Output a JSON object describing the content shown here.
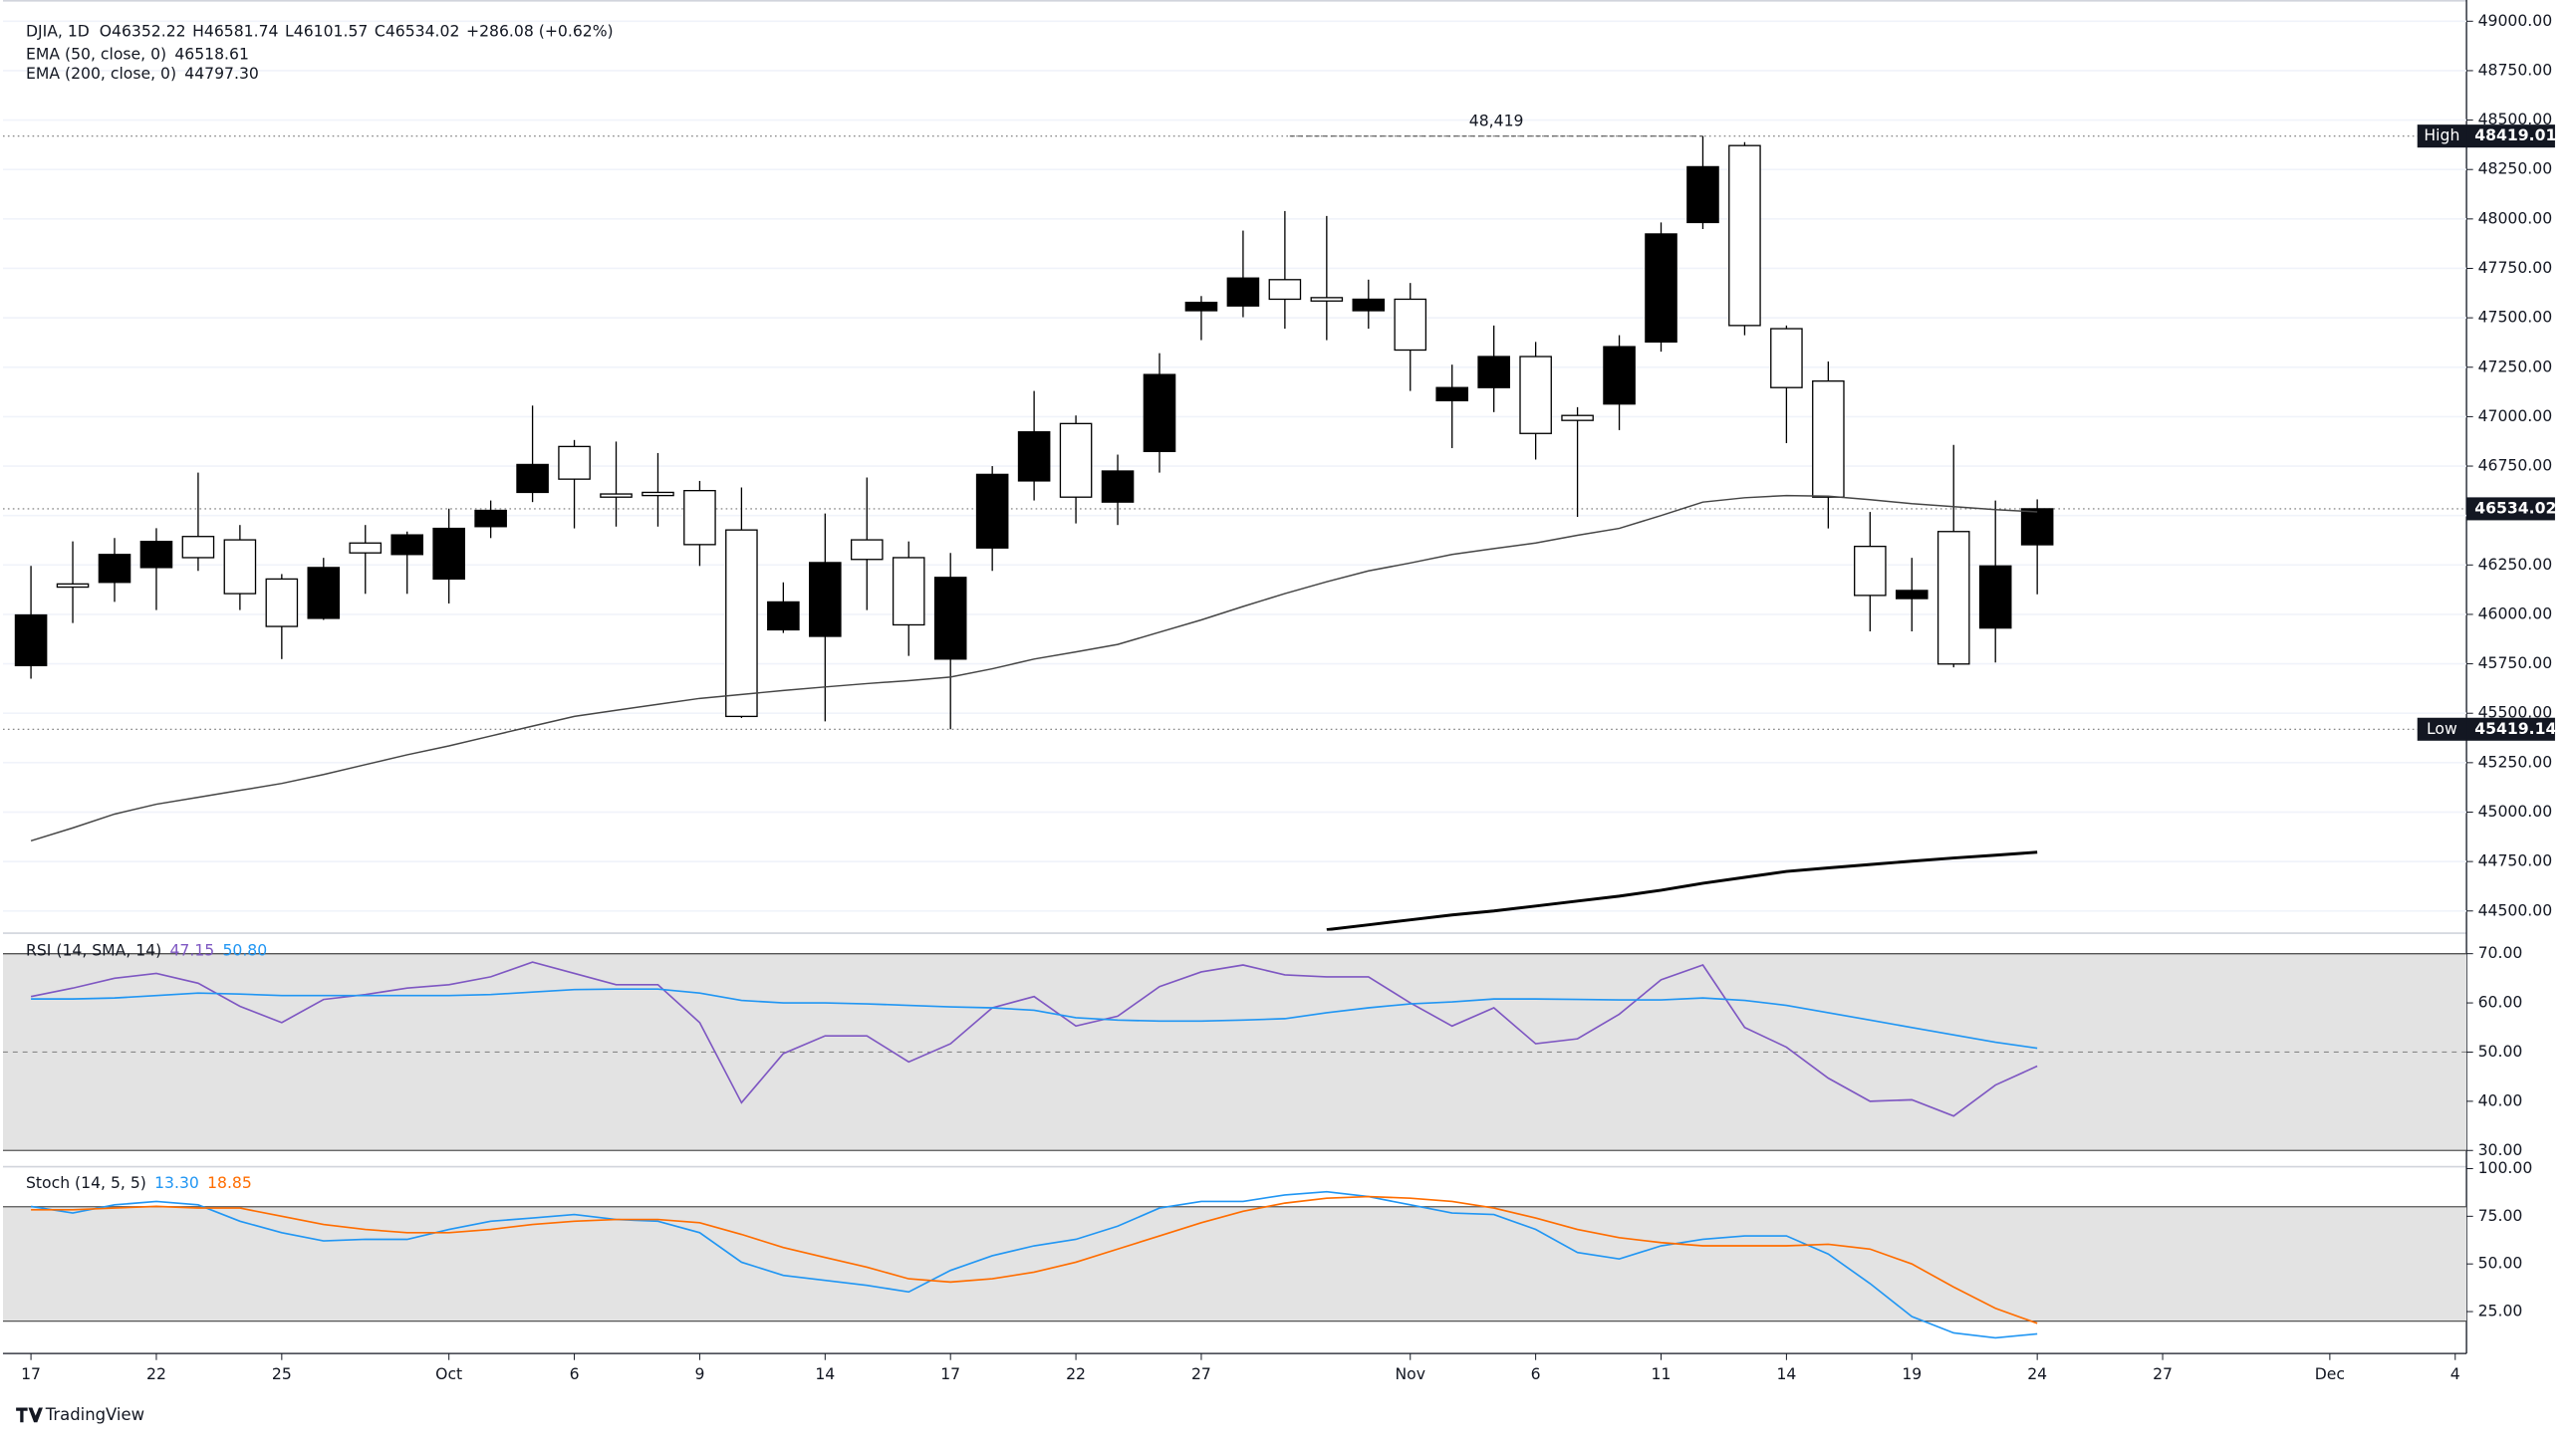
{
  "chart_data": [
    {
      "type": "candlestick",
      "title": "DJIA, 1D",
      "ohlc_prefixes": [
        "O",
        "H",
        "L",
        "C"
      ],
      "change": "+286.08 (+0.62%)",
      "x": [
        0,
        1,
        2,
        3,
        4,
        5,
        6,
        7,
        8,
        9,
        10,
        11,
        12,
        13,
        14,
        15,
        16,
        17,
        18,
        19,
        20,
        21,
        22,
        23,
        24,
        25,
        26,
        27,
        28,
        29,
        30,
        31,
        32,
        33,
        34,
        35,
        36,
        37,
        38,
        39,
        40,
        41,
        42,
        43,
        44,
        45,
        46,
        47,
        48
      ],
      "open": [
        45741,
        46154,
        46162,
        46237,
        46394,
        46377,
        46179,
        45980,
        46361,
        46303,
        46179,
        46444,
        46617,
        46849,
        46609,
        46617,
        46626,
        46427,
        45922,
        45889,
        46377,
        46287,
        45774,
        46336,
        46675,
        46965,
        46568,
        46824,
        47536,
        47560,
        47693,
        47602,
        47536,
        47594,
        47081,
        47147,
        47304,
        47006,
        47064,
        47378,
        47982,
        48371,
        47445,
        47180,
        46344,
        46080,
        46419,
        45931,
        46352.22
      ],
      "high": [
        46245,
        46369,
        46386,
        46436,
        46717,
        46452,
        46204,
        46286,
        46452,
        46419,
        46535,
        46576,
        47056,
        46882,
        46874,
        46816,
        46675,
        46642,
        46162,
        46510,
        46692,
        46369,
        46311,
        46750,
        47130,
        47006,
        46808,
        47321,
        47610,
        47941,
        48040,
        48015,
        47693,
        47676,
        47263,
        47461,
        47378,
        47048,
        47412,
        47982,
        48419.01,
        48388,
        47461,
        47279,
        46518,
        46286,
        46857,
        46576,
        46581.74
      ],
      "low": [
        45675,
        45956,
        46063,
        46022,
        46220,
        46022,
        45774,
        45972,
        46104,
        46104,
        46055,
        46386,
        46568,
        46435,
        46444,
        46444,
        46245,
        45476,
        45906,
        45459,
        46022,
        45790,
        45419.14,
        46220,
        46576,
        46460,
        46452,
        46717,
        47387,
        47503,
        47445,
        47387,
        47445,
        47130,
        46841,
        47023,
        46783,
        46493,
        46932,
        47329,
        47949,
        47412,
        46866,
        46435,
        45914,
        45914,
        45732,
        45757,
        46101.57
      ],
      "close": [
        45997,
        46138,
        46303,
        46369,
        46287,
        46105,
        45939,
        46237,
        46311,
        46402,
        46435,
        46526,
        46758,
        46684,
        46593,
        46601,
        46353,
        45484,
        46063,
        46262,
        46278,
        45947,
        46187,
        46708,
        46923,
        46593,
        46725,
        47213,
        47578,
        47701,
        47594,
        47585,
        47594,
        47337,
        47147,
        47304,
        46915,
        46981,
        47354,
        47924,
        48264,
        47461,
        47147,
        46593,
        46096,
        46121,
        45749,
        46245,
        46534.02
      ],
      "up_color": "#000000",
      "down_color": "#ffffff",
      "overlays": [
        {
          "name": "EMA (50, close, 0)",
          "color": "#454545",
          "width": 0.9,
          "values": [
            44855,
            44920,
            44990,
            45040,
            45075,
            45110,
            45145,
            45190,
            45240,
            45290,
            45335,
            45385,
            45435,
            45484,
            45515,
            45545,
            45575,
            45595,
            45615,
            45633,
            45650,
            45665,
            45683,
            45725,
            45774,
            45810,
            45848,
            45910,
            45972,
            46040,
            46105,
            46165,
            46220,
            46260,
            46303,
            46333,
            46361,
            46400,
            46435,
            46500,
            46568,
            46590,
            46601,
            46598,
            46580,
            46560,
            46545,
            46530,
            46518.61
          ]
        },
        {
          "name": "EMA (200, close, 0)",
          "color": "#000000",
          "width": 1.8,
          "values": [
            null,
            null,
            null,
            null,
            null,
            null,
            null,
            null,
            null,
            null,
            null,
            null,
            null,
            null,
            null,
            null,
            null,
            null,
            null,
            null,
            null,
            null,
            null,
            null,
            null,
            null,
            null,
            null,
            null,
            null,
            null,
            44405,
            44430,
            44455,
            44480,
            44500,
            44525,
            44550,
            44575,
            44605,
            44640,
            44670,
            44700,
            44718,
            44735,
            44752,
            44768,
            44782,
            44797.3
          ],
          "value_labels": [
            null,
            null,
            null,
            null,
            null,
            null,
            null,
            null,
            null,
            null,
            null,
            null,
            null,
            null,
            null,
            null,
            null,
            null,
            null,
            null,
            null,
            null,
            null,
            null,
            null,
            null,
            null,
            null,
            null,
            null,
            null,
            null,
            null,
            null,
            null,
            null,
            null,
            null,
            null,
            null,
            null,
            null,
            null,
            null,
            null,
            null,
            null,
            null,
            "44797.30"
          ]
        }
      ],
      "high_tag": "High",
      "low_tag": "Low",
      "high_note": "48,419",
      "ylim": [
        44400,
        49099
      ],
      "yticks": [
        {
          "value": 44500,
          "label": "44500.00"
        },
        {
          "value": 44750,
          "label": "44750.00"
        },
        {
          "value": 45000,
          "label": "45000.00"
        },
        {
          "value": 45250,
          "label": "45250.00"
        },
        {
          "value": 45500,
          "label": "45500.00"
        },
        {
          "value": 45750,
          "label": "45750.00"
        },
        {
          "value": 46000,
          "label": "46000.00"
        },
        {
          "value": 46250,
          "label": "46250.00"
        },
        {
          "value": 46500,
          "label": "46500.00"
        },
        {
          "value": 46750,
          "label": "46750.00"
        },
        {
          "value": 47000,
          "label": "47000.00"
        },
        {
          "value": 47250,
          "label": "47250.00"
        },
        {
          "value": 47500,
          "label": "47500.00"
        },
        {
          "value": 47750,
          "label": "47750.00"
        },
        {
          "value": 48000,
          "label": "48000.00"
        },
        {
          "value": 48250,
          "label": "48250.00"
        },
        {
          "value": 48500,
          "label": "48500.00"
        },
        {
          "value": 48750,
          "label": "48750.00"
        },
        {
          "value": 49000,
          "label": "49000.00"
        }
      ],
      "xlim": [
        -0.67,
        58.27
      ],
      "xticks": [
        {
          "value": 0,
          "label": "17"
        },
        {
          "value": 3,
          "label": "22"
        },
        {
          "value": 6,
          "label": "25"
        },
        {
          "value": 10,
          "label": "Oct"
        },
        {
          "value": 13,
          "label": "6"
        },
        {
          "value": 16,
          "label": "9"
        },
        {
          "value": 19,
          "label": "14"
        },
        {
          "value": 22,
          "label": "17"
        },
        {
          "value": 25,
          "label": "22"
        },
        {
          "value": 28,
          "label": "27"
        },
        {
          "value": 33,
          "label": "Nov"
        },
        {
          "value": 36,
          "label": "6"
        },
        {
          "value": 39,
          "label": "11"
        },
        {
          "value": 42,
          "label": "14"
        },
        {
          "value": 45,
          "label": "19"
        },
        {
          "value": 48,
          "label": "24"
        },
        {
          "value": 51,
          "label": "27"
        },
        {
          "value": 55,
          "label": "Dec"
        },
        {
          "value": 58,
          "label": "4"
        }
      ],
      "grid": true,
      "branding": "TradingView"
    },
    {
      "type": "line",
      "title": "RSI (14, SMA, 14)",
      "series": [
        {
          "color": "#7e57c2",
          "values": [
            61.3,
            63,
            65,
            66,
            64,
            59.3,
            56,
            60.7,
            61.7,
            63,
            63.7,
            65.3,
            68.3,
            66,
            63.7,
            63.7,
            56,
            39.7,
            49.7,
            53.3,
            53.3,
            48,
            51.7,
            59,
            61.3,
            55.3,
            57.3,
            63.3,
            66.3,
            67.7,
            65.7,
            65.3,
            65.3,
            60,
            55.3,
            59,
            51.7,
            52.7,
            57.7,
            64.7,
            67.7,
            55,
            51,
            44.7,
            40,
            40.3,
            37,
            43.3,
            47.15
          ]
        },
        {
          "color": "#2196f3",
          "values": [
            60.8,
            60.8,
            61,
            61.5,
            62,
            61.8,
            61.5,
            61.5,
            61.5,
            61.5,
            61.5,
            61.7,
            62.2,
            62.7,
            62.8,
            62.8,
            62,
            60.5,
            60,
            60,
            59.8,
            59.5,
            59.2,
            59,
            58.5,
            57,
            56.5,
            56.3,
            56.3,
            56.5,
            56.8,
            58,
            59,
            59.8,
            60.2,
            60.8,
            60.8,
            60.7,
            60.6,
            60.6,
            61,
            60.5,
            59.5,
            58,
            56.5,
            55,
            53.5,
            52,
            50.8
          ],
          "value_labels": [
            null,
            null,
            null,
            null,
            null,
            null,
            null,
            null,
            null,
            null,
            null,
            null,
            null,
            null,
            null,
            null,
            null,
            null,
            null,
            null,
            null,
            null,
            null,
            null,
            null,
            null,
            null,
            null,
            null,
            null,
            null,
            null,
            null,
            null,
            null,
            null,
            null,
            null,
            null,
            null,
            null,
            null,
            null,
            null,
            null,
            null,
            null,
            null,
            "50.80"
          ]
        }
      ],
      "band": [
        30,
        70
      ],
      "midline": 50,
      "ylim": [
        26.7,
        74
      ],
      "yticks": [
        {
          "value": 30,
          "label": "30.00"
        },
        {
          "value": 40,
          "label": "40.00"
        },
        {
          "value": 50,
          "label": "50.00"
        },
        {
          "value": 60,
          "label": "60.00"
        },
        {
          "value": 70,
          "label": "70.00"
        }
      ]
    },
    {
      "type": "line",
      "title": "Stoch (14, 5, 5)",
      "series": [
        {
          "color": "#2196f3",
          "values": [
            80.2,
            76.7,
            81,
            82.8,
            81,
            72.4,
            66.4,
            62.1,
            62.9,
            62.9,
            68.1,
            72.4,
            74.1,
            75.9,
            73.3,
            72.4,
            66.4,
            50.9,
            44,
            41.4,
            38.8,
            35.3,
            46.6,
            54.3,
            59.5,
            62.9,
            69.8,
            79.3,
            82.8,
            82.8,
            86.2,
            87.9,
            85.3,
            81,
            76.7,
            75.9,
            68.1,
            56,
            52.6,
            59.5,
            62.9,
            64.7,
            64.7,
            55.2,
            39.7,
            22.4,
            13.8,
            11.2,
            13.3
          ],
          "value_labels": [
            null,
            null,
            null,
            null,
            null,
            null,
            null,
            null,
            null,
            null,
            null,
            null,
            null,
            null,
            null,
            null,
            null,
            null,
            null,
            null,
            null,
            null,
            null,
            null,
            null,
            null,
            null,
            null,
            null,
            null,
            null,
            null,
            null,
            null,
            null,
            null,
            null,
            null,
            null,
            null,
            null,
            null,
            null,
            null,
            null,
            null,
            null,
            null,
            "13.30"
          ]
        },
        {
          "color": "#ff6d00",
          "values": [
            78.4,
            78.4,
            79.3,
            80.2,
            79.3,
            79.3,
            75,
            70.7,
            68.1,
            66.4,
            66.4,
            68.1,
            70.7,
            72.4,
            73.3,
            73.3,
            71.6,
            65.5,
            58.6,
            53.4,
            48.3,
            42.2,
            40.5,
            42.2,
            45.7,
            50.9,
            57.8,
            64.7,
            71.6,
            77.6,
            81.9,
            84.5,
            85.3,
            84.5,
            82.8,
            79.3,
            74.1,
            68.1,
            63.8,
            61.2,
            59.5,
            59.5,
            59.5,
            60.3,
            57.8,
            50,
            37.9,
            26.7,
            18.85
          ]
        }
      ],
      "band": [
        20,
        80
      ],
      "ylim": [
        3,
        101
      ],
      "yticks": [
        {
          "value": 25,
          "label": "25.00"
        },
        {
          "value": 50,
          "label": "50.00"
        },
        {
          "value": 75,
          "label": "75.00"
        },
        {
          "value": 100,
          "label": "100.00"
        }
      ]
    }
  ]
}
